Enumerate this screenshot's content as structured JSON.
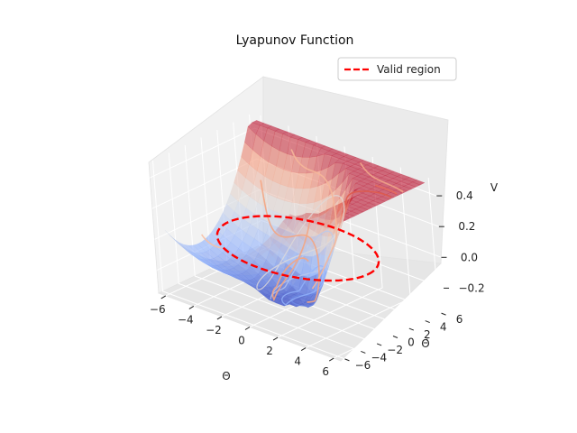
{
  "chart_data": {
    "type": "surface",
    "title": "Lyapunov Function",
    "xlabel": "Θ",
    "ylabel": "Θ̇",
    "zlabel": "V",
    "xlim": [
      -6.5,
      6.5
    ],
    "ylim": [
      -6.5,
      6.5
    ],
    "zlim": [
      -0.35,
      0.5
    ],
    "xticks": [
      "−6",
      "−4",
      "−2",
      "0",
      "2",
      "4",
      "6"
    ],
    "yticks": [
      "−6",
      "−4",
      "−2",
      "0",
      "2",
      "4",
      "6"
    ],
    "zticks": [
      "−0.2",
      "0.0",
      "0.2",
      "0.4"
    ],
    "colormap": "coolwarm",
    "surface_alpha": 0.6,
    "legend": {
      "placement": "top-right",
      "entries": [
        {
          "label": "Valid region",
          "color": "#ff0000",
          "style": "dashed"
        }
      ]
    },
    "valid_region": {
      "shape": "circle",
      "center": [
        0,
        0
      ],
      "radius": 5,
      "z": 0.0,
      "color": "#ff0000"
    },
    "grid": true
  }
}
